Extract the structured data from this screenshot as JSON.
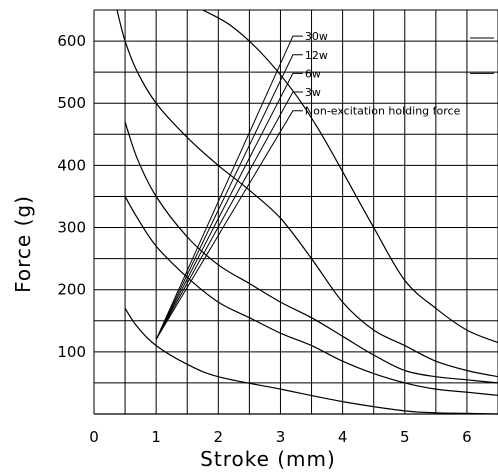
{
  "chart_data": {
    "type": "line",
    "xlabel": "Stroke (mm)",
    "ylabel": "Force (g)",
    "xlim": [
      0,
      6.5
    ],
    "ylim": [
      0,
      650
    ],
    "x_ticks": [
      0,
      1,
      2,
      3,
      4,
      5,
      6
    ],
    "y_ticks": [
      100,
      200,
      300,
      400,
      500,
      600
    ],
    "x_grid_step": 0.5,
    "y_grid_step": 50,
    "grid": true,
    "legend_placement": "top-right",
    "legend_leaders": [
      {
        "label": "30w",
        "from": [
          1.0,
          120
        ],
        "to": [
          3.2,
          608
        ]
      },
      {
        "label": "12w",
        "from": [
          1.0,
          120
        ],
        "to": [
          3.2,
          578
        ]
      },
      {
        "label": "6w",
        "from": [
          1.0,
          120
        ],
        "to": [
          3.2,
          548
        ]
      },
      {
        "label": "3w",
        "from": [
          1.0,
          120
        ],
        "to": [
          3.2,
          518
        ]
      },
      {
        "label": "Non-excitation holding force",
        "from": [
          1.0,
          120
        ],
        "to": [
          3.2,
          488
        ]
      }
    ],
    "series": [
      {
        "name": "30w",
        "x": [
          1.75,
          2.2,
          2.7,
          3.2,
          3.6,
          4.0,
          4.5,
          5.0,
          5.5,
          6.0,
          6.5
        ],
        "y": [
          650,
          625,
          580,
          520,
          460,
          390,
          300,
          215,
          170,
          135,
          115
        ]
      },
      {
        "name": "12w",
        "x": [
          0.37,
          0.5,
          0.7,
          1.0,
          1.5,
          2.0,
          2.5,
          3.0,
          3.5,
          4.0,
          4.5,
          5.0,
          5.5,
          6.0,
          6.5
        ],
        "y": [
          650,
          600,
          550,
          500,
          445,
          400,
          360,
          315,
          250,
          180,
          135,
          110,
          85,
          70,
          60
        ]
      },
      {
        "name": "6w",
        "x": [
          0.5,
          0.7,
          1.0,
          1.5,
          2.0,
          2.5,
          3.0,
          3.5,
          4.0,
          4.5,
          5.0,
          5.5,
          6.0,
          6.5
        ],
        "y": [
          470,
          410,
          350,
          285,
          240,
          210,
          180,
          155,
          125,
          95,
          70,
          60,
          55,
          50
        ]
      },
      {
        "name": "3w",
        "x": [
          0.5,
          0.7,
          1.0,
          1.5,
          2.0,
          2.5,
          3.0,
          3.5,
          4.0,
          4.5,
          5.0,
          5.5,
          6.0,
          6.5
        ],
        "y": [
          350,
          315,
          270,
          220,
          180,
          155,
          130,
          110,
          85,
          65,
          50,
          40,
          35,
          30
        ]
      },
      {
        "name": "Non-excitation holding force",
        "x": [
          0.5,
          0.7,
          1.0,
          1.5,
          2.0,
          3.0,
          4.0,
          5.0,
          5.5,
          6.0,
          6.5
        ],
        "y": [
          170,
          140,
          110,
          80,
          60,
          40,
          20,
          5,
          2,
          1,
          0
        ]
      }
    ]
  }
}
